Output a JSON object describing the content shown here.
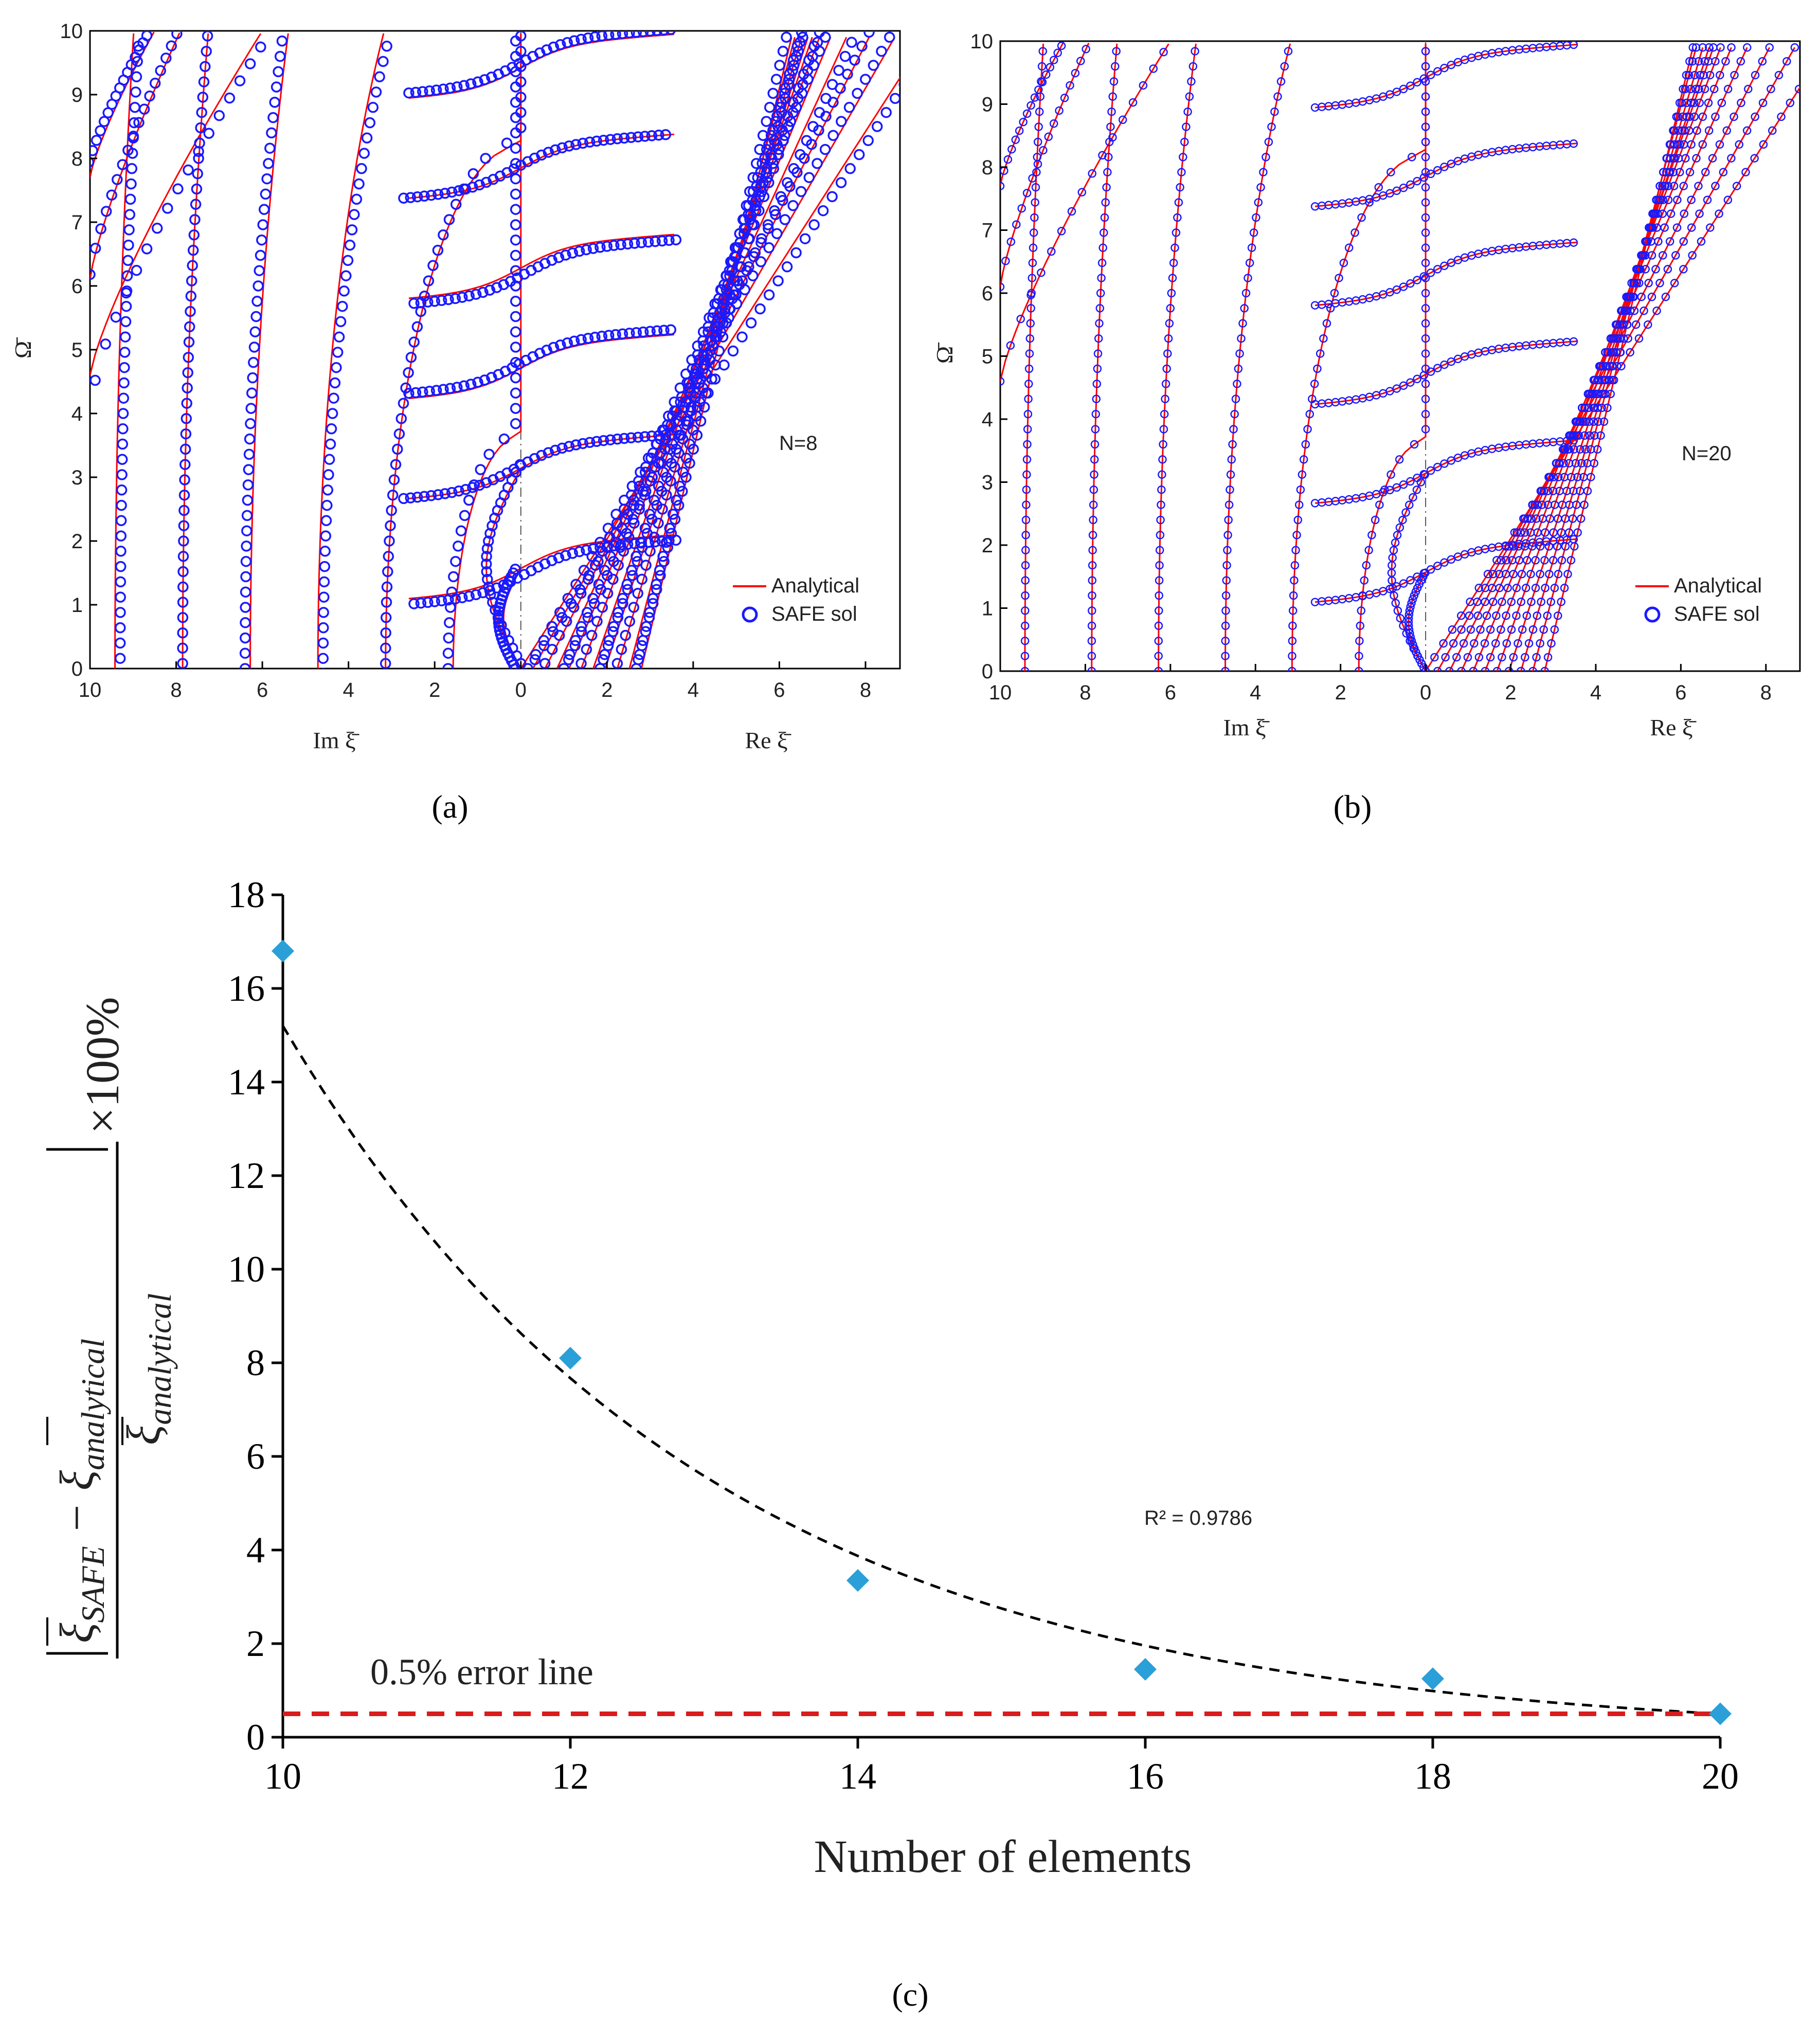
{
  "colors": {
    "analytical": "#ff0000",
    "safe": "#1a1aff",
    "marker": "#2a9fd8",
    "trend": "#000000",
    "error_line": "#d91c1c",
    "axis": "#000000"
  },
  "captions": {
    "a": "(a)",
    "b": "(b)",
    "c": "(c)"
  },
  "chart_data": [
    {
      "id": "a",
      "type": "line",
      "ylabel": "Ω̄",
      "xlabel_left": "Im ξ̄",
      "xlabel_right": "Re ξ̄",
      "annotation": "N=8",
      "xlim": [
        -10,
        8.8
      ],
      "ylim": [
        0,
        10
      ],
      "x_ticks": [
        "10",
        "8",
        "6",
        "4",
        "2",
        "0",
        "2",
        "4",
        "6",
        "8"
      ],
      "y_ticks": [
        "0",
        "1",
        "2",
        "3",
        "4",
        "5",
        "6",
        "7",
        "8",
        "9",
        "10"
      ],
      "legend": {
        "position": "bottom-right",
        "entries": [
          "Analytical",
          "SAFE sol"
        ]
      },
      "imag_branch_roots": [
        1.57,
        3.14,
        4.71,
        6.28,
        7.85,
        9.42
      ],
      "real_branch_slopes": [
        1.0,
        1.12,
        1.25,
        1.4,
        1.55,
        1.7,
        1.85,
        2.0,
        2.2,
        2.45,
        2.7
      ],
      "plateau_levels": [
        1.57,
        3.14,
        4.71,
        6.28,
        7.85,
        9.42
      ]
    },
    {
      "id": "b",
      "type": "line",
      "ylabel": "Ω̄",
      "xlabel_left": "Im ξ̄",
      "xlabel_right": "Re ξ̄",
      "annotation": "N=20",
      "xlim": [
        -10,
        8.8
      ],
      "ylim": [
        0,
        10
      ],
      "x_ticks": [
        "10",
        "8",
        "6",
        "4",
        "2",
        "0",
        "2",
        "4",
        "6",
        "8"
      ],
      "y_ticks": [
        "0",
        "1",
        "2",
        "3",
        "4",
        "5",
        "6",
        "7",
        "8",
        "9",
        "10"
      ],
      "legend": {
        "position": "bottom-right",
        "entries": [
          "Analytical",
          "SAFE sol"
        ]
      },
      "imag_branch_roots": [
        1.57,
        3.14,
        4.71,
        6.28,
        7.85,
        9.42
      ],
      "real_branch_slopes": [
        1.0,
        1.12,
        1.25,
        1.4,
        1.55,
        1.7,
        1.85,
        2.0,
        2.2,
        2.45,
        2.7
      ],
      "plateau_levels": [
        1.57,
        3.14,
        4.71,
        6.28,
        7.85,
        9.42
      ]
    },
    {
      "id": "c",
      "type": "scatter",
      "xlabel": "Number of elements",
      "ylabel_parts": {
        "times": "×100%"
      },
      "x": [
        10,
        12,
        14,
        16,
        18,
        20
      ],
      "values": [
        16.8,
        8.1,
        3.35,
        1.45,
        1.25,
        0.5
      ],
      "xlim": [
        10,
        20
      ],
      "ylim": [
        0,
        18
      ],
      "x_ticks": [
        "10",
        "12",
        "14",
        "16",
        "18",
        "20"
      ],
      "y_ticks": [
        "0",
        "2",
        "4",
        "6",
        "8",
        "10",
        "12",
        "14",
        "16",
        "18"
      ],
      "trendline": {
        "type": "exponential",
        "a": 15.2,
        "b": 0.3418,
        "r2_label": "R² = 0.9786"
      },
      "error_line": {
        "value": 0.5,
        "label": "0.5% error line"
      }
    }
  ]
}
